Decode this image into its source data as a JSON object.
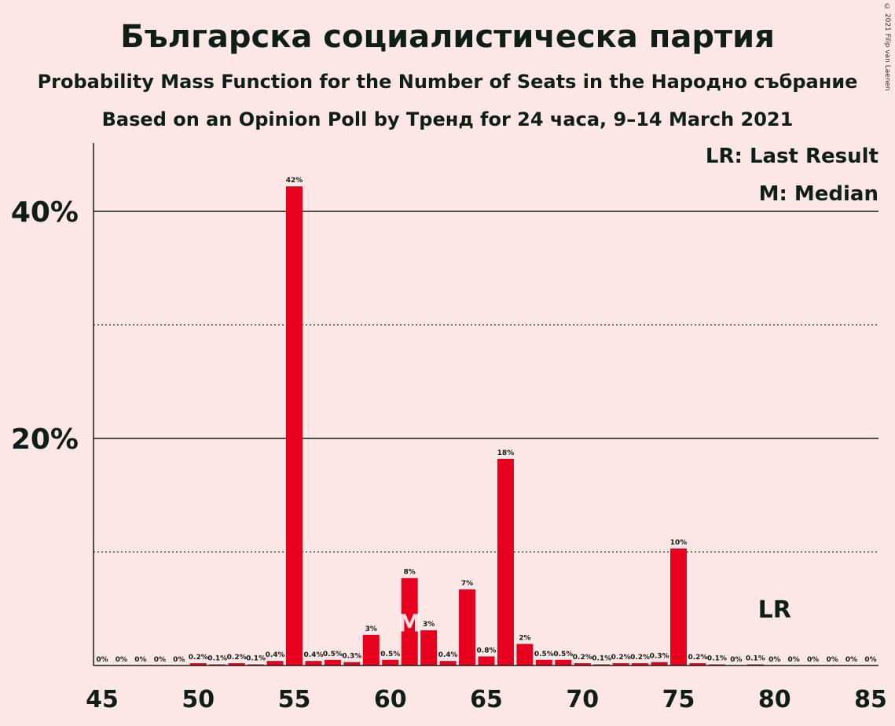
{
  "title": "Българска социалистическа партия",
  "subtitle1": "Probability Mass Function for the Number of Seats in the Народно събрание",
  "subtitle2": "Based on an Opinion Poll by Тренд for 24 часа, 9–14 March 2021",
  "copyright": "© 2021 Filip van Laenen",
  "legend": {
    "last_result": "LR: Last Result",
    "median": "M: Median"
  },
  "colors": {
    "bar": "#e8001f",
    "background": "#fde6e6",
    "text": "#0f1f17"
  },
  "chart_data": {
    "type": "bar",
    "x": [
      45,
      46,
      47,
      48,
      49,
      50,
      51,
      52,
      53,
      54,
      55,
      56,
      57,
      58,
      59,
      60,
      61,
      62,
      63,
      64,
      65,
      66,
      67,
      68,
      69,
      70,
      71,
      72,
      73,
      74,
      75,
      76,
      77,
      78,
      79,
      80,
      81,
      82,
      83,
      84,
      85
    ],
    "values": [
      0,
      0,
      0,
      0,
      0,
      0.2,
      0.1,
      0.2,
      0.1,
      0.4,
      42.2,
      0.4,
      0.5,
      0.3,
      2.7,
      0.5,
      7.7,
      3.1,
      0.4,
      6.7,
      0.8,
      18.2,
      1.9,
      0.5,
      0.5,
      0.2,
      0.1,
      0.2,
      0.2,
      0.3,
      10.3,
      0.2,
      0.1,
      0,
      0.1,
      0,
      0,
      0,
      0,
      0,
      0
    ],
    "labels": [
      "0%",
      "0%",
      "0%",
      "0%",
      "0%",
      "0.2%",
      "0.1%",
      "0.2%",
      "0.1%",
      "0.4%",
      "42%",
      "0.4%",
      "0.5%",
      "0.3%",
      "3%",
      "0.5%",
      "8%",
      "3%",
      "0.4%",
      "7%",
      "0.8%",
      "18%",
      "2%",
      "0.5%",
      "0.5%",
      "0.2%",
      "0.1%",
      "0.2%",
      "0.2%",
      "0.3%",
      "10%",
      "0.2%",
      "0.1%",
      "0%",
      "0.1%",
      "0%",
      "0%",
      "0%",
      "0%",
      "0%",
      "0%"
    ],
    "x_ticks": [
      45,
      50,
      55,
      60,
      65,
      70,
      75,
      80,
      85
    ],
    "y_ticks": [
      {
        "value": 20,
        "label": "20%"
      },
      {
        "value": 40,
        "label": "40%"
      }
    ],
    "dotted_lines": [
      10,
      30
    ],
    "ylim": [
      0,
      46
    ],
    "median": 61,
    "median_marker": "M",
    "last_result": 80,
    "last_result_marker": "LR"
  }
}
